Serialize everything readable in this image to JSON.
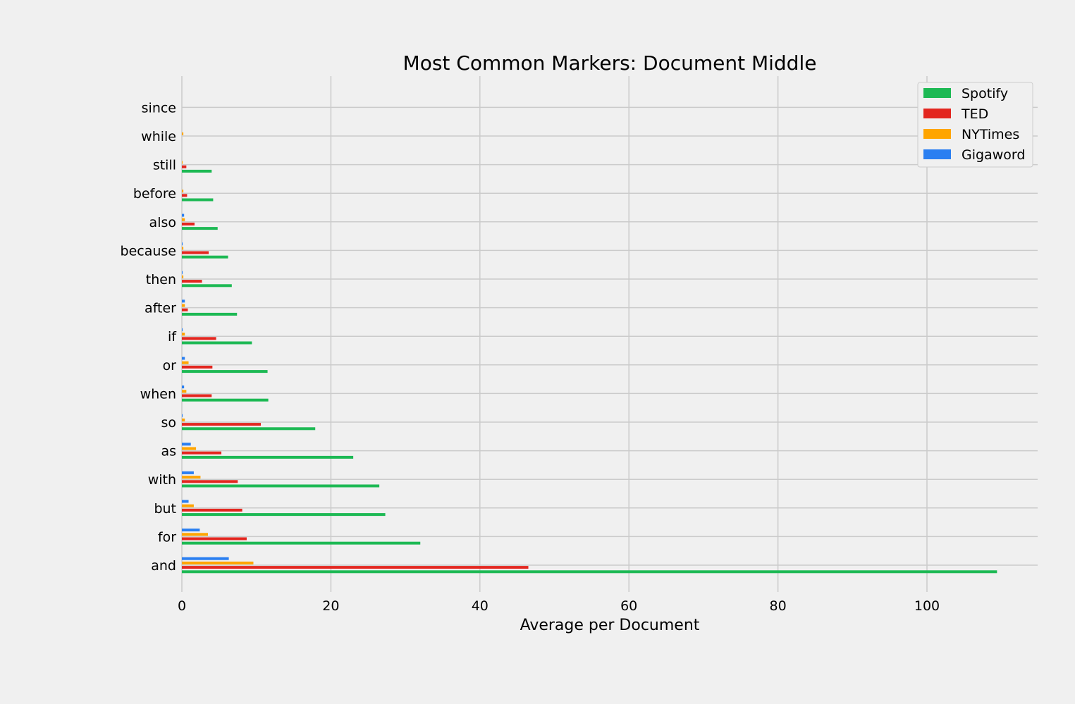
{
  "chart_data": {
    "type": "bar",
    "orientation": "horizontal",
    "title": "Most Common Markers: Document Middle",
    "xlabel": "Average per Document",
    "ylabel": "",
    "xlim": [
      0,
      115
    ],
    "xticks": [
      0,
      20,
      40,
      60,
      80,
      100
    ],
    "grid": true,
    "legend_position": "top-right",
    "categories": [
      "and",
      "for",
      "but",
      "with",
      "as",
      "so",
      "when",
      "or",
      "if",
      "after",
      "then",
      "because",
      "also",
      "before",
      "still",
      "while",
      "since"
    ],
    "series": [
      {
        "name": "Spotify",
        "color": "#1db954",
        "values": [
          109.4,
          32.0,
          27.3,
          26.5,
          23.0,
          17.9,
          11.6,
          11.5,
          9.4,
          7.4,
          6.7,
          6.2,
          4.8,
          4.2,
          4.0,
          0.0,
          0.0
        ]
      },
      {
        "name": "TED",
        "color": "#e3261f",
        "values": [
          46.5,
          8.7,
          8.1,
          7.5,
          5.3,
          10.6,
          4.0,
          4.1,
          4.6,
          0.8,
          2.7,
          3.6,
          1.7,
          0.7,
          0.6,
          0.0,
          0.0
        ]
      },
      {
        "name": "NYTimes",
        "color": "#ffa500",
        "values": [
          9.6,
          3.5,
          1.6,
          2.5,
          1.9,
          0.4,
          0.6,
          0.9,
          0.4,
          0.4,
          0.2,
          0.2,
          0.4,
          0.2,
          0.1,
          0.2,
          0.0
        ]
      },
      {
        "name": "Gigaword",
        "color": "#2a7ff1",
        "values": [
          6.3,
          2.4,
          0.9,
          1.6,
          1.2,
          0.1,
          0.3,
          0.4,
          0.1,
          0.4,
          0.1,
          0.1,
          0.3,
          0.0,
          0.0,
          0.0,
          0.0
        ]
      }
    ]
  }
}
